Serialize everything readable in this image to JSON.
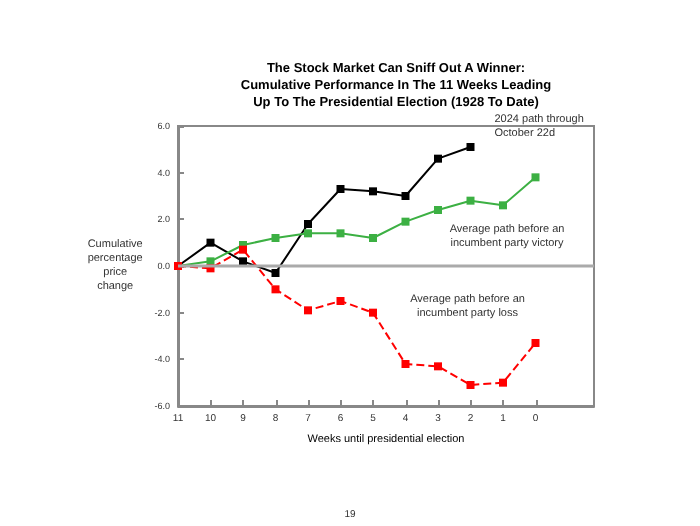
{
  "chart_data": {
    "type": "line",
    "title": "The Stock Market Can Sniff Out A Winner:\nCumulative Performance In The 11 Weeks Leading\nUp To The Presidential Election (1928 To Date)",
    "xlabel": "Weeks until presidential election",
    "ylabel": "Cumulative\npercentage\nprice\nchange",
    "xlim": [
      11,
      -1.8
    ],
    "xticks": [
      11,
      10,
      9,
      8,
      7,
      6,
      5,
      4,
      3,
      2,
      1,
      0
    ],
    "ylim": [
      -6,
      6
    ],
    "yticks": [
      {
        "value": -6,
        "label": "-6.0"
      },
      {
        "value": -4,
        "label": "-4.0"
      },
      {
        "value": -2,
        "label": "-2.0"
      },
      {
        "value": 0,
        "label": "0.0"
      },
      {
        "value": 2,
        "label": "2.0"
      },
      {
        "value": 4,
        "label": "4.0"
      },
      {
        "value": 6,
        "label": "6.0"
      }
    ],
    "series": [
      {
        "color": "#000000",
        "x": [
          11,
          10,
          9,
          8,
          7,
          6,
          5,
          4,
          3,
          2
        ],
        "values": [
          0,
          1.0,
          0.2,
          -0.3,
          1.8,
          3.3,
          3.2,
          3.0,
          4.6,
          5.1
        ],
        "line_style": "solid"
      },
      {
        "color": "#3cb043",
        "x": [
          11,
          10,
          9,
          8,
          7,
          6,
          5,
          4,
          3,
          2,
          1,
          0
        ],
        "values": [
          0,
          0.2,
          0.9,
          1.2,
          1.4,
          1.4,
          1.2,
          1.9,
          2.4,
          2.8,
          2.6,
          3.8
        ],
        "line_style": "solid"
      },
      {
        "color": "#ff0000",
        "x": [
          11,
          10,
          9,
          8,
          7,
          6,
          5,
          4,
          3,
          2,
          1,
          0
        ],
        "values": [
          0,
          -0.1,
          0.7,
          -1.0,
          -1.9,
          -1.5,
          -2.0,
          -4.2,
          -4.3,
          -5.1,
          -5.0,
          -3.3
        ],
        "line_style": "dashed"
      }
    ],
    "marker": "square",
    "grid": false,
    "ref_lines": [
      {
        "axis": "y",
        "value": 0,
        "color": "#aaaaaa"
      }
    ],
    "annotations": [
      {
        "text": "2024 path through\nOctober 22d",
        "x": 2,
        "y": 5.1
      },
      {
        "text": "Average path before an\nincumbent party victory",
        "x": 1,
        "y": 2.6
      },
      {
        "text": "Average path before an\nincumbent party loss",
        "x": 0,
        "y": -3.3
      },
      "19"
    ]
  }
}
